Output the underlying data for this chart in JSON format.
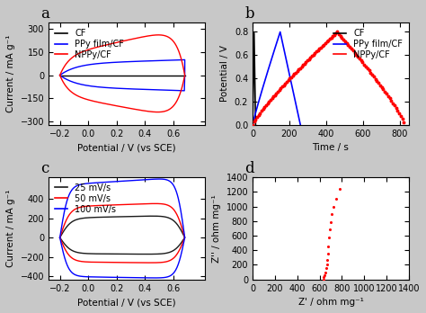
{
  "fig_bg": "#c8c8c8",
  "panel_bg": "#ffffff",
  "panel_labels": [
    "a",
    "b",
    "c",
    "d"
  ],
  "panel_label_fontsize": 12,
  "axis_label_fontsize": 7.5,
  "tick_fontsize": 7,
  "legend_fontsize": 7,
  "cv_a": {
    "xlabel": "Potential / V (vs SCE)",
    "ylabel": "Current / mA g⁻¹",
    "xlim": [
      -0.28,
      0.82
    ],
    "ylim": [
      -320,
      340
    ],
    "xticks": [
      -0.2,
      0.0,
      0.2,
      0.4,
      0.6
    ],
    "yticks": [
      -300,
      -150,
      0,
      150,
      300
    ],
    "legend": [
      "CF",
      "PPy film/CF",
      "NPPy/CF"
    ],
    "colors": [
      "black",
      "blue",
      "red"
    ]
  },
  "gcd_b": {
    "xlabel": "Time / s",
    "ylabel": "Potential / V",
    "xlim": [
      0,
      850
    ],
    "ylim": [
      0,
      0.88
    ],
    "xticks": [
      0,
      200,
      400,
      600,
      800
    ],
    "yticks": [
      0.0,
      0.2,
      0.4,
      0.6,
      0.8
    ],
    "legend": [
      "CF",
      "PPy film/CF",
      "NPPy/CF"
    ],
    "colors": [
      "black",
      "blue",
      "red"
    ]
  },
  "cv_c": {
    "xlabel": "Potential / V (vs SCE)",
    "ylabel": "Current / mA g⁻¹",
    "xlim": [
      -0.28,
      0.82
    ],
    "ylim": [
      -430,
      620
    ],
    "xticks": [
      -0.2,
      0.0,
      0.2,
      0.4,
      0.6
    ],
    "yticks": [
      -400,
      -200,
      0,
      200,
      400
    ],
    "legend": [
      "25 mV/s",
      "50 mV/s",
      "100 mV/s"
    ],
    "colors": [
      "#1a1a1a",
      "red",
      "blue"
    ]
  },
  "eis_d": {
    "xlabel": "Z' / ohm mg⁻¹",
    "ylabel": "Z'' / ohm mg⁻¹",
    "xlim": [
      0,
      1400
    ],
    "ylim": [
      0,
      1400
    ],
    "xticks": [
      0,
      200,
      400,
      600,
      800,
      1000,
      1200,
      1400
    ],
    "yticks": [
      0,
      200,
      400,
      600,
      800,
      1000,
      1200,
      1400
    ]
  }
}
